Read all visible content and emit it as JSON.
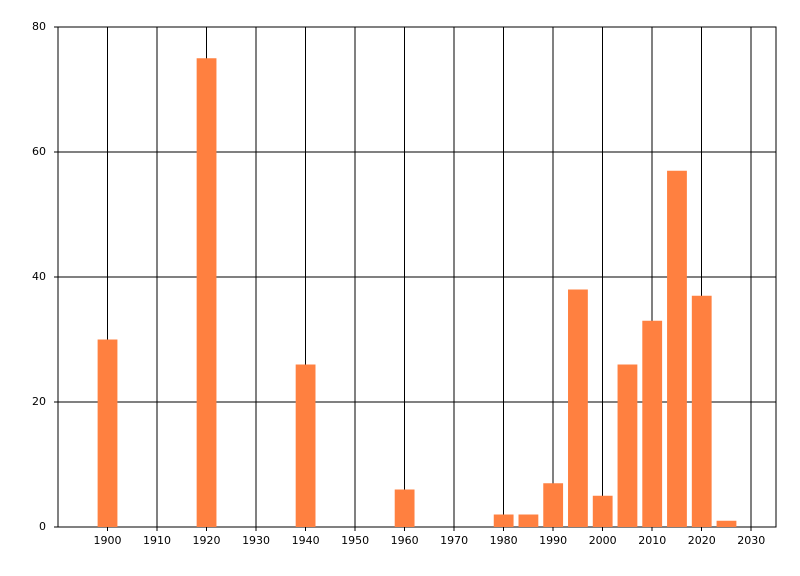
{
  "chart_data": {
    "type": "bar",
    "x": [
      1900,
      1920,
      1940,
      1960,
      1980,
      1985,
      1990,
      1995,
      2000,
      2005,
      2010,
      2015,
      2020,
      2025
    ],
    "values": [
      30,
      75,
      26,
      6,
      2,
      2,
      7,
      38,
      5,
      26,
      33,
      57,
      37,
      1
    ],
    "color": "#ff8040",
    "xlim": [
      1890,
      2035
    ],
    "xticks": [
      1900,
      1910,
      1920,
      1930,
      1940,
      1950,
      1960,
      1970,
      1980,
      1990,
      2000,
      2010,
      2020,
      2030
    ],
    "ylim": [
      0,
      80
    ],
    "yticks": [
      0,
      20,
      40,
      60,
      80
    ],
    "grid": true
  }
}
